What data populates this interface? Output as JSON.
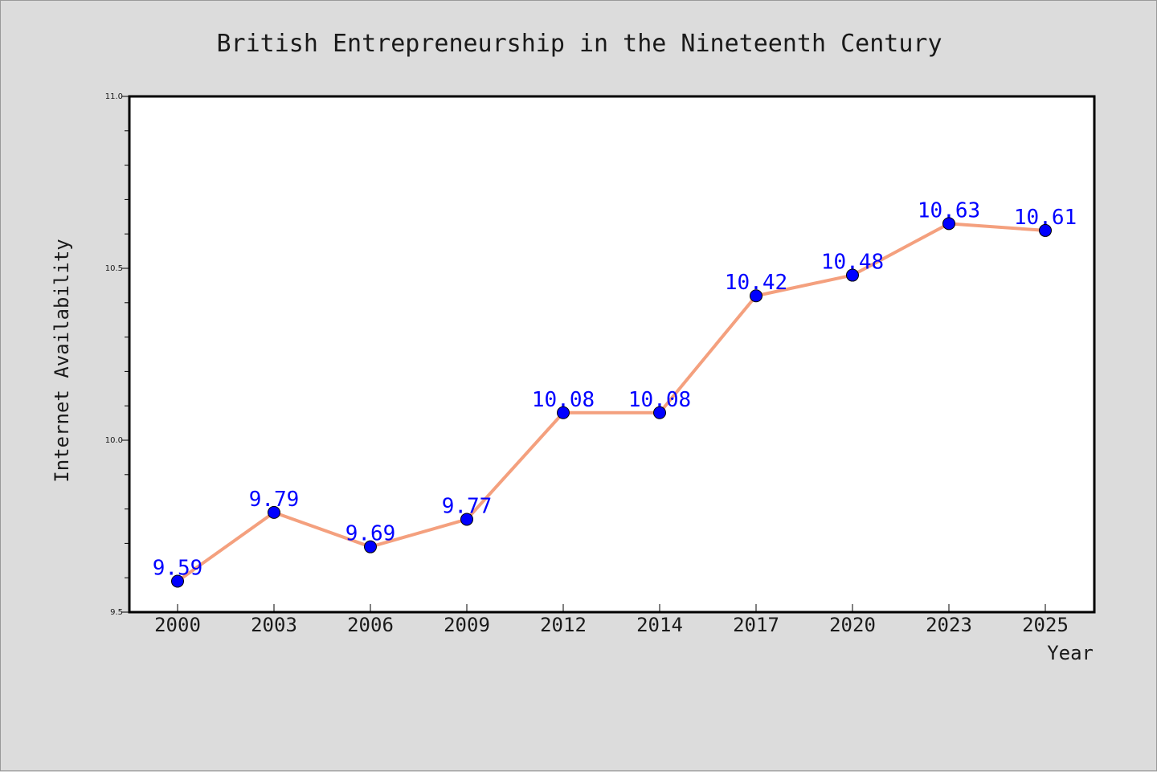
{
  "chart_data": {
    "type": "line",
    "title": "British Entrepreneurship in the Nineteenth Century",
    "xlabel": "Year",
    "ylabel": "Internet Availability",
    "categories": [
      "2000",
      "2003",
      "2006",
      "2009",
      "2012",
      "2014",
      "2017",
      "2020",
      "2023",
      "2025"
    ],
    "series": [
      {
        "values": [
          9.59,
          9.79,
          9.69,
          9.77,
          10.08,
          10.08,
          10.42,
          10.48,
          10.63,
          10.61
        ],
        "labels": [
          "9.59",
          "9.79",
          "9.69",
          "9.77",
          "10.08",
          "10.08",
          "10.42",
          "10.48",
          "10.63",
          "10.61"
        ],
        "line_color": "#f4a07e",
        "marker_color": "#0000ff"
      }
    ],
    "ylim": [
      9.5,
      11.0
    ],
    "yticks": [
      "9.5",
      "10.0",
      "10.5",
      "11.0"
    ],
    "grid": false,
    "legend": "none",
    "background_color": "#dcdcdc",
    "plot_background_color": "#ffffff"
  }
}
